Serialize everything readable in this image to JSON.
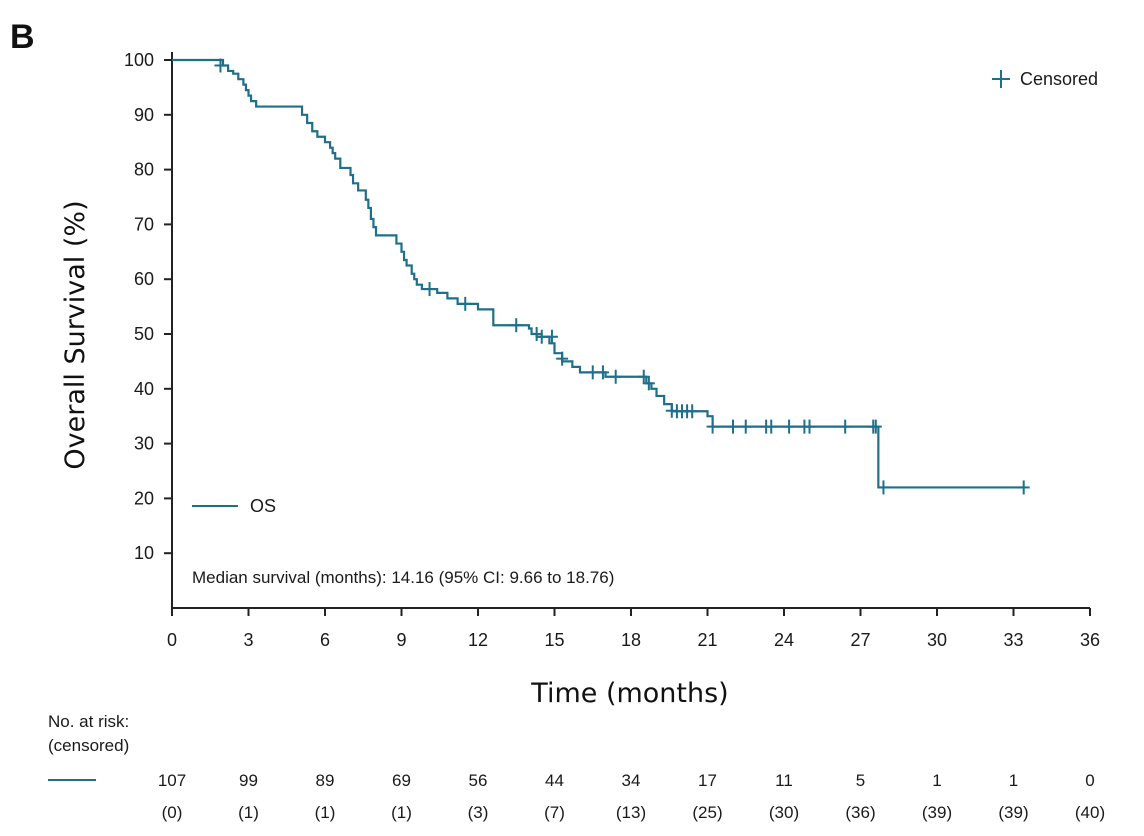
{
  "panel_label": "B",
  "chart_data": {
    "type": "line",
    "subtype": "kaplan-meier",
    "xlabel": "Time (months)",
    "ylabel": "Overall Survival (%)",
    "xlim": [
      0,
      36
    ],
    "ylim": [
      0,
      100
    ],
    "xticks": [
      0,
      3,
      6,
      9,
      12,
      15,
      18,
      21,
      24,
      27,
      30,
      33,
      36
    ],
    "yticks": [
      10,
      20,
      30,
      40,
      50,
      60,
      70,
      80,
      90,
      100
    ],
    "grid": false,
    "series": [
      {
        "name": "OS",
        "color": "#1f6f8b",
        "steps": [
          [
            0,
            100
          ],
          [
            2.0,
            99
          ],
          [
            2.2,
            98
          ],
          [
            2.4,
            97.5
          ],
          [
            2.6,
            96.5
          ],
          [
            2.8,
            95.5
          ],
          [
            2.9,
            94.5
          ],
          [
            3.0,
            93.5
          ],
          [
            3.1,
            92.5
          ],
          [
            3.3,
            91.5
          ],
          [
            5.0,
            91.5
          ],
          [
            5.1,
            90.0
          ],
          [
            5.3,
            88.5
          ],
          [
            5.5,
            87.0
          ],
          [
            5.7,
            86.0
          ],
          [
            6.0,
            85.0
          ],
          [
            6.2,
            84.0
          ],
          [
            6.3,
            83.0
          ],
          [
            6.4,
            82.0
          ],
          [
            6.6,
            80.3
          ],
          [
            7.0,
            79.0
          ],
          [
            7.1,
            77.5
          ],
          [
            7.3,
            76.2
          ],
          [
            7.6,
            74.5
          ],
          [
            7.7,
            73.0
          ],
          [
            7.8,
            71.0
          ],
          [
            7.9,
            69.5
          ],
          [
            8.0,
            68.0
          ],
          [
            8.8,
            66.5
          ],
          [
            9.0,
            65.0
          ],
          [
            9.1,
            63.5
          ],
          [
            9.2,
            62.5
          ],
          [
            9.4,
            61.0
          ],
          [
            9.5,
            60.0
          ],
          [
            9.6,
            59.0
          ],
          [
            9.8,
            58.2
          ],
          [
            10.4,
            57.5
          ],
          [
            10.8,
            56.5
          ],
          [
            11.2,
            55.5
          ],
          [
            12.0,
            54.5
          ],
          [
            12.6,
            51.6
          ],
          [
            14.0,
            51.0
          ],
          [
            14.1,
            50.0
          ],
          [
            14.3,
            49.5
          ],
          [
            14.8,
            48.3
          ],
          [
            15.0,
            46.5
          ],
          [
            15.3,
            45.0
          ],
          [
            15.7,
            44.0
          ],
          [
            16.0,
            43.0
          ],
          [
            17.0,
            42.2
          ],
          [
            18.6,
            41.0
          ],
          [
            18.8,
            40.0
          ],
          [
            19.0,
            38.7
          ],
          [
            19.3,
            37.2
          ],
          [
            19.6,
            35.9
          ],
          [
            21.0,
            35.0
          ],
          [
            21.2,
            33.1
          ],
          [
            27.7,
            33.1
          ],
          [
            27.7,
            22.0
          ],
          [
            33.4,
            22.0
          ]
        ],
        "censored": [
          [
            1.9,
            99
          ],
          [
            10.1,
            58.2
          ],
          [
            11.5,
            55.5
          ],
          [
            13.5,
            51.6
          ],
          [
            14.3,
            50.0
          ],
          [
            14.5,
            49.5
          ],
          [
            14.9,
            49.5
          ],
          [
            15.3,
            45.5
          ],
          [
            16.5,
            43.0
          ],
          [
            16.9,
            43.0
          ],
          [
            17.4,
            42.2
          ],
          [
            18.5,
            42.2
          ],
          [
            18.7,
            41.0
          ],
          [
            19.6,
            36.0
          ],
          [
            19.8,
            35.9
          ],
          [
            20.0,
            35.9
          ],
          [
            20.2,
            35.9
          ],
          [
            20.4,
            35.9
          ],
          [
            21.2,
            33.1
          ],
          [
            22.0,
            33.1
          ],
          [
            22.5,
            33.1
          ],
          [
            23.3,
            33.1
          ],
          [
            23.5,
            33.1
          ],
          [
            24.2,
            33.1
          ],
          [
            24.8,
            33.1
          ],
          [
            25.0,
            33.1
          ],
          [
            26.4,
            33.1
          ],
          [
            27.5,
            33.1
          ],
          [
            27.6,
            33.1
          ],
          [
            27.9,
            22.0
          ],
          [
            33.4,
            22.0
          ]
        ]
      }
    ],
    "legend_censored": "Censored",
    "legend_series": "OS",
    "annotation": "Median survival (months): 14.16 (95% CI: 9.66 to 18.76)",
    "risk_table": {
      "header_line1": "No. at risk:",
      "header_line2": "(censored)",
      "times": [
        0,
        3,
        6,
        9,
        12,
        15,
        18,
        21,
        24,
        27,
        30,
        33,
        36
      ],
      "at_risk": [
        "107",
        "99",
        "89",
        "69",
        "56",
        "44",
        "34",
        "17",
        "11",
        "5",
        "1",
        "1",
        "0"
      ],
      "censored": [
        "(0)",
        "(1)",
        "(1)",
        "(1)",
        "(3)",
        "(7)",
        "(13)",
        "(25)",
        "(30)",
        "(36)",
        "(39)",
        "(39)",
        "(40)"
      ]
    }
  }
}
